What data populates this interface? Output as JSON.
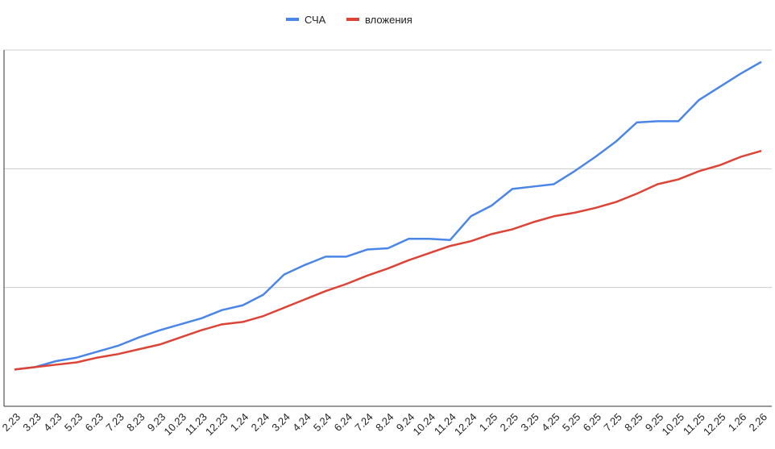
{
  "chart_data": {
    "type": "line",
    "categories": [
      "2.23",
      "3.23",
      "4.23",
      "5.23",
      "6.23",
      "7.23",
      "8.23",
      "9.23",
      "10.23",
      "11.23",
      "12.23",
      "1.24",
      "2.24",
      "3.24",
      "4.24",
      "5.24",
      "6.24",
      "7.24",
      "8.24",
      "9.24",
      "10.24",
      "11.24",
      "12.24",
      "1.25",
      "2.25",
      "3.25",
      "4.25",
      "5.25",
      "6.25",
      "7.25",
      "8.25",
      "9.25",
      "10.25",
      "11.25",
      "12.25",
      "1.26",
      "2.26"
    ],
    "series": [
      {
        "name": "СЧА",
        "color": "#4a86e8",
        "values": [
          0.31,
          0.33,
          0.38,
          0.41,
          0.46,
          0.51,
          0.58,
          0.64,
          0.69,
          0.74,
          0.81,
          0.85,
          0.94,
          1.11,
          1.19,
          1.26,
          1.26,
          1.32,
          1.33,
          1.41,
          1.41,
          1.4,
          1.6,
          1.69,
          1.83,
          1.85,
          1.87,
          1.98,
          2.1,
          2.23,
          2.39,
          2.4,
          2.4,
          2.58,
          2.69,
          2.8,
          2.9
        ]
      },
      {
        "name": "вложения",
        "color": "#db4437",
        "values": [
          0.31,
          0.33,
          0.35,
          0.37,
          0.41,
          0.44,
          0.48,
          0.52,
          0.58,
          0.64,
          0.69,
          0.71,
          0.76,
          0.83,
          0.9,
          0.97,
          1.03,
          1.1,
          1.16,
          1.23,
          1.29,
          1.35,
          1.39,
          1.45,
          1.49,
          1.55,
          1.6,
          1.63,
          1.67,
          1.72,
          1.79,
          1.87,
          1.91,
          1.98,
          2.03,
          2.1,
          2.15
        ]
      }
    ],
    "ylim": [
      0,
      3
    ],
    "yticks": [
      0,
      1,
      2,
      3
    ],
    "grid": true,
    "legend": "top"
  }
}
